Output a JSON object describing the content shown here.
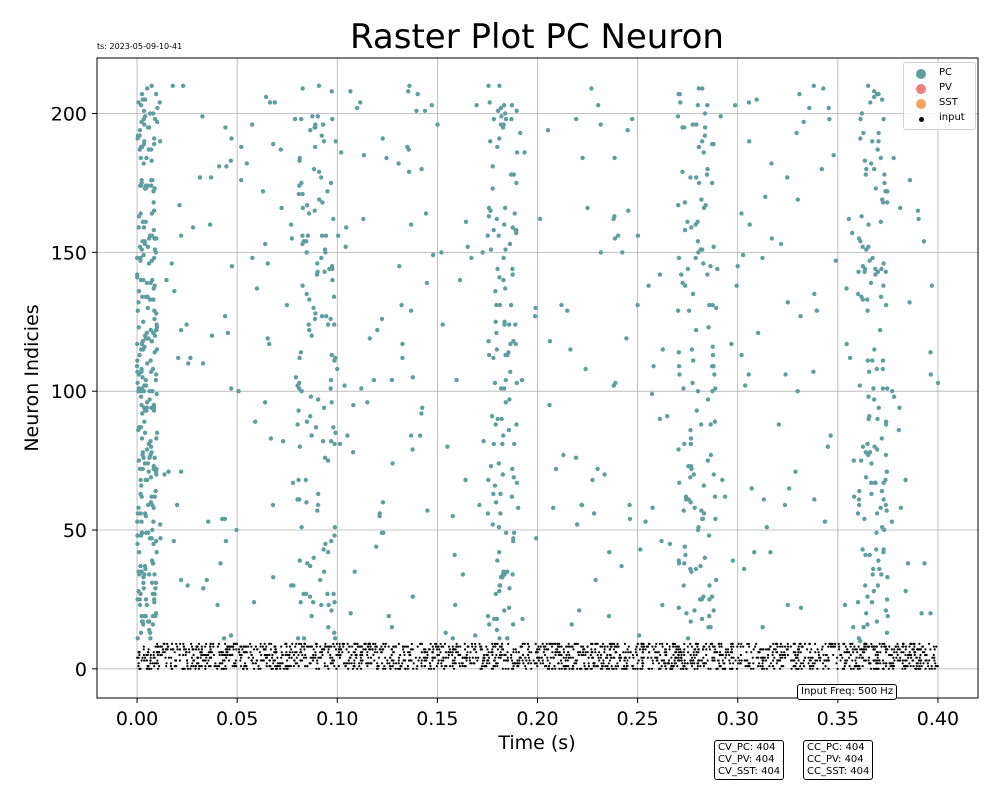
{
  "timestamp": "ts: 2023-05-09-10-41",
  "annotations": {
    "input_freq": "Input Freq: 500 Hz",
    "cv": [
      "CV_PC: 404",
      "CV_PV: 404",
      "CV_SST: 404"
    ],
    "cc": [
      "CC_PC: 404",
      "CC_PV: 404",
      "CC_SST: 404"
    ]
  },
  "chart_data": {
    "type": "scatter",
    "title": "Raster Plot PC Neuron",
    "xlabel": "Time (s)",
    "ylabel": "Neuron Indicies",
    "xlim": [
      -0.02,
      0.42
    ],
    "ylim": [
      -10.5,
      220
    ],
    "xticks": [
      0.0,
      0.05,
      0.1,
      0.15,
      0.2,
      0.25,
      0.3,
      0.35,
      0.4
    ],
    "xtick_labels": [
      "0.00",
      "0.05",
      "0.10",
      "0.15",
      "0.20",
      "0.25",
      "0.30",
      "0.35",
      "0.40"
    ],
    "yticks": [
      0,
      50,
      100,
      150,
      200
    ],
    "ytick_labels": [
      "0",
      "50",
      "100",
      "150",
      "200"
    ],
    "grid": true,
    "legend_position": "top-right",
    "series": [
      {
        "name": "PC",
        "color": "#5f9ea0",
        "neuron_range": [
          10,
          210
        ],
        "dense_windows": [
          [
            0.0,
            0.01
          ],
          [
            0.08,
            0.1
          ],
          [
            0.175,
            0.19
          ],
          [
            0.27,
            0.29
          ],
          [
            0.36,
            0.375
          ]
        ],
        "points": [
          [
            0.002,
            48
          ],
          [
            0.004,
            120
          ],
          [
            0.006,
            155
          ],
          [
            0.008,
            200
          ],
          [
            0.01,
            85
          ],
          [
            0.02,
            59
          ],
          [
            0.023,
            210
          ],
          [
            0.022,
            156
          ],
          [
            0.022,
            122
          ],
          [
            0.022,
            71
          ],
          [
            0.022,
            32
          ],
          [
            0.037,
            177
          ],
          [
            0.041,
            181
          ],
          [
            0.044,
            127
          ],
          [
            0.047,
            101
          ],
          [
            0.052,
            188
          ],
          [
            0.059,
            89
          ],
          [
            0.064,
            153
          ],
          [
            0.068,
            189
          ],
          [
            0.068,
            33
          ],
          [
            0.108,
            95
          ],
          [
            0.113,
            162
          ],
          [
            0.115,
            96
          ],
          [
            0.12,
            122
          ],
          [
            0.123,
            49
          ],
          [
            0.131,
            145
          ],
          [
            0.135,
            188
          ],
          [
            0.136,
            210
          ],
          [
            0.142,
            92
          ],
          [
            0.145,
            57
          ],
          [
            0.155,
            80
          ],
          [
            0.167,
            148
          ],
          [
            0.171,
            59
          ],
          [
            0.199,
            130
          ],
          [
            0.206,
            95
          ],
          [
            0.212,
            131
          ],
          [
            0.225,
            166
          ],
          [
            0.229,
            32
          ],
          [
            0.238,
            162
          ],
          [
            0.245,
            194
          ],
          [
            0.25,
            131
          ],
          [
            0.254,
            53
          ],
          [
            0.258,
            109
          ],
          [
            0.262,
            46
          ],
          [
            0.3,
            145
          ],
          [
            0.306,
            160
          ],
          [
            0.313,
            61
          ],
          [
            0.317,
            155
          ],
          [
            0.325,
            132
          ],
          [
            0.33,
            169
          ],
          [
            0.338,
            210
          ],
          [
            0.342,
            180
          ],
          [
            0.345,
            80
          ],
          [
            0.39,
            165
          ],
          [
            0.397,
            138
          ],
          [
            0.4,
            103
          ]
        ]
      },
      {
        "name": "PV",
        "color": "#f08080",
        "points": []
      },
      {
        "name": "SST",
        "color": "#f4a460",
        "points": []
      },
      {
        "name": "input",
        "color": "#000000",
        "neuron_range": [
          0,
          9
        ],
        "time_range": [
          0.0,
          0.4
        ],
        "approx_spike_count": 2000
      }
    ]
  }
}
